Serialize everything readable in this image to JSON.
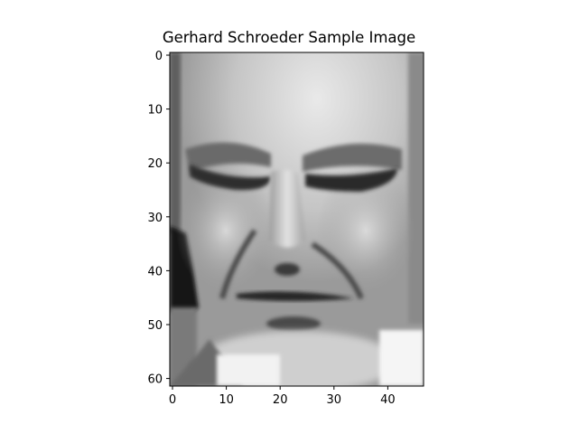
{
  "title": "Gerhard Schroeder Sample Image",
  "x_ticks": [
    "0",
    "10",
    "20",
    "30",
    "40"
  ],
  "y_ticks": [
    "0",
    "10",
    "20",
    "30",
    "40",
    "50",
    "60"
  ],
  "image": {
    "subject": "grayscale face photograph",
    "colormap": "gray",
    "width": 47,
    "height": 62
  }
}
